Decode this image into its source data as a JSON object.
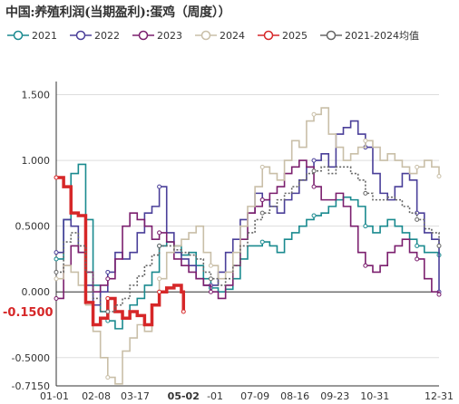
{
  "title": "中国:养殖利润(当期盈利):蛋鸡（周度））",
  "chart_data": {
    "type": "line",
    "y_ticks": [
      "1.500",
      "1.000",
      "0.5000",
      "0.000",
      "-0.5000",
      "-0.7150"
    ],
    "y_tick_values": [
      1.5,
      1.0,
      0.5,
      0.0,
      -0.5,
      -0.715
    ],
    "ylim": [
      -0.715,
      1.6
    ],
    "x_ticks": [
      "01-01",
      "02-08",
      "03-17",
      "05-02",
      "-01",
      "07-09",
      "08-16",
      "09-23",
      "10-31",
      "12-31"
    ],
    "x_tick_days": [
      0,
      38,
      75,
      121,
      151,
      189,
      227,
      265,
      303,
      364
    ],
    "xlim": [
      0,
      364
    ],
    "highlight": {
      "x_label": "05-02",
      "y_label": "-0.1500",
      "color": "#d62728"
    },
    "series": [
      {
        "name": "2021",
        "color": "#1a8a8f",
        "x": [
          0,
          7,
          14,
          21,
          28,
          35,
          42,
          49,
          56,
          63,
          70,
          77,
          84,
          91,
          98,
          105,
          112,
          119,
          126,
          133,
          140,
          147,
          154,
          161,
          168,
          175,
          182,
          189,
          196,
          203,
          210,
          217,
          224,
          231,
          238,
          245,
          252,
          259,
          266,
          273,
          280,
          287,
          294,
          301,
          308,
          315,
          322,
          329,
          336,
          343,
          350,
          357,
          364
        ],
        "y": [
          0.25,
          0.55,
          0.9,
          0.97,
          0.55,
          0.05,
          -0.15,
          -0.22,
          -0.28,
          -0.2,
          -0.1,
          -0.05,
          0.05,
          0.15,
          0.35,
          0.38,
          0.35,
          0.28,
          0.3,
          0.2,
          0.1,
          0.03,
          0.0,
          0.02,
          0.1,
          0.25,
          0.35,
          0.35,
          0.38,
          0.35,
          0.3,
          0.4,
          0.45,
          0.5,
          0.55,
          0.58,
          0.6,
          0.65,
          0.7,
          0.72,
          0.7,
          0.65,
          0.5,
          0.45,
          0.5,
          0.55,
          0.5,
          0.45,
          0.4,
          0.35,
          0.3,
          0.3,
          0.28
        ]
      },
      {
        "name": "2022",
        "color": "#4a3f99",
        "x": [
          0,
          7,
          14,
          21,
          28,
          35,
          42,
          49,
          56,
          63,
          70,
          77,
          84,
          91,
          98,
          105,
          112,
          119,
          126,
          133,
          140,
          147,
          154,
          161,
          168,
          175,
          182,
          189,
          196,
          203,
          210,
          217,
          224,
          231,
          238,
          245,
          252,
          259,
          266,
          273,
          280,
          287,
          294,
          301,
          308,
          315,
          322,
          329,
          336,
          343,
          350,
          357,
          364
        ],
        "y": [
          0.3,
          0.55,
          0.5,
          0.3,
          0.05,
          -0.1,
          0.0,
          0.15,
          0.3,
          0.25,
          0.3,
          0.45,
          0.6,
          0.65,
          0.8,
          0.45,
          0.3,
          0.25,
          0.2,
          0.1,
          0.05,
          0.05,
          0.15,
          0.3,
          0.4,
          0.55,
          0.6,
          0.75,
          0.7,
          0.65,
          0.6,
          0.7,
          0.75,
          0.85,
          0.95,
          1.0,
          1.05,
          0.95,
          1.2,
          1.25,
          1.3,
          1.2,
          1.1,
          0.9,
          0.75,
          0.7,
          0.8,
          0.9,
          0.85,
          0.6,
          0.45,
          0.4,
          0.0
        ]
      },
      {
        "name": "2023",
        "color": "#7b1f6e",
        "x": [
          0,
          7,
          14,
          21,
          28,
          35,
          42,
          49,
          56,
          63,
          70,
          77,
          84,
          91,
          98,
          105,
          112,
          119,
          126,
          133,
          140,
          147,
          154,
          161,
          168,
          175,
          182,
          189,
          196,
          203,
          210,
          217,
          224,
          231,
          238,
          245,
          252,
          259,
          266,
          273,
          280,
          287,
          294,
          301,
          308,
          315,
          322,
          329,
          336,
          343,
          350,
          357,
          364
        ],
        "y": [
          -0.05,
          0.2,
          0.35,
          0.3,
          0.15,
          0.0,
          0.05,
          0.1,
          0.25,
          0.5,
          0.6,
          0.55,
          0.5,
          0.4,
          0.45,
          0.38,
          0.25,
          0.2,
          0.15,
          0.1,
          0.05,
          0.0,
          -0.05,
          0.05,
          0.2,
          0.4,
          0.6,
          0.65,
          0.7,
          0.75,
          0.8,
          0.9,
          0.95,
          1.0,
          0.95,
          0.8,
          0.7,
          0.7,
          0.75,
          0.65,
          0.5,
          0.3,
          0.2,
          0.15,
          0.2,
          0.3,
          0.35,
          0.4,
          0.3,
          0.25,
          0.1,
          0.0,
          -0.02
        ]
      },
      {
        "name": "2024",
        "color": "#c9bfa8",
        "x": [
          0,
          7,
          14,
          21,
          28,
          35,
          42,
          49,
          56,
          63,
          70,
          77,
          84,
          91,
          98,
          105,
          112,
          119,
          126,
          133,
          140,
          147,
          154,
          161,
          168,
          175,
          182,
          189,
          196,
          203,
          210,
          217,
          224,
          231,
          238,
          245,
          252,
          259,
          266,
          273,
          280,
          287,
          294,
          301,
          308,
          315,
          322,
          329,
          336,
          343,
          350,
          357,
          364
        ],
        "y": [
          0.1,
          0.2,
          0.15,
          0.05,
          -0.1,
          -0.3,
          -0.5,
          -0.65,
          -0.7,
          -0.45,
          -0.35,
          -0.25,
          -0.3,
          -0.1,
          0.1,
          0.3,
          0.35,
          0.4,
          0.45,
          0.5,
          0.3,
          0.2,
          0.1,
          0.15,
          0.3,
          0.5,
          0.65,
          0.8,
          0.95,
          0.9,
          0.85,
          1.0,
          1.15,
          1.1,
          1.3,
          1.35,
          1.4,
          1.2,
          1.1,
          1.0,
          1.05,
          1.1,
          1.15,
          1.1,
          1.0,
          1.05,
          1.0,
          0.95,
          0.9,
          0.95,
          1.0,
          0.95,
          0.88
        ]
      },
      {
        "name": "2025",
        "color": "#d62728",
        "x": [
          0,
          7,
          14,
          21,
          28,
          35,
          42,
          49,
          56,
          63,
          70,
          77,
          84,
          91,
          98,
          105,
          112,
          119,
          121
        ],
        "y": [
          0.87,
          0.8,
          0.6,
          0.58,
          -0.08,
          -0.25,
          -0.2,
          -0.05,
          -0.15,
          -0.2,
          -0.15,
          -0.18,
          -0.25,
          -0.1,
          0.0,
          0.03,
          0.05,
          0.0,
          -0.15
        ]
      },
      {
        "name": "2021-2024均值",
        "color": "#666666",
        "dash": "2,2",
        "x": [
          0,
          7,
          14,
          21,
          28,
          35,
          42,
          49,
          56,
          63,
          70,
          77,
          84,
          91,
          98,
          105,
          112,
          119,
          126,
          133,
          140,
          147,
          154,
          161,
          168,
          175,
          182,
          189,
          196,
          203,
          210,
          217,
          224,
          231,
          238,
          245,
          252,
          259,
          266,
          273,
          280,
          287,
          294,
          301,
          308,
          315,
          322,
          329,
          336,
          343,
          350,
          357,
          364
        ],
        "y": [
          0.15,
          0.38,
          0.45,
          0.35,
          0.15,
          -0.05,
          -0.15,
          -0.15,
          -0.1,
          -0.05,
          0.05,
          0.12,
          0.2,
          0.28,
          0.35,
          0.35,
          0.32,
          0.3,
          0.28,
          0.25,
          0.15,
          0.1,
          0.05,
          0.1,
          0.2,
          0.35,
          0.45,
          0.55,
          0.6,
          0.65,
          0.7,
          0.75,
          0.8,
          0.85,
          0.9,
          0.92,
          0.95,
          0.9,
          0.95,
          0.95,
          0.9,
          0.85,
          0.75,
          0.7,
          0.7,
          0.72,
          0.7,
          0.65,
          0.6,
          0.55,
          0.48,
          0.45,
          0.35
        ]
      }
    ]
  }
}
